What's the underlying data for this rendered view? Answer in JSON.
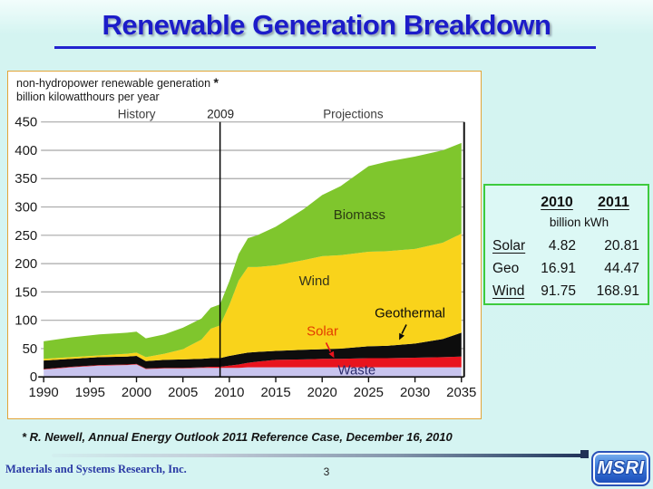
{
  "slide": {
    "title": "Renewable Generation Breakdown",
    "footnote": "* R. Newell, Annual Energy Outlook 2011 Reference Case, December 16, 2010",
    "organization": "Materials and Systems Research, Inc.",
    "page_number": "3",
    "logo_text": "MSRI"
  },
  "chart": {
    "header_line1": "non-hydropower renewable generation",
    "header_asterisk": "*",
    "header_line2": "billion kilowatthours per year",
    "period_labels": {
      "history": "History",
      "divider_year": "2009",
      "projections": "Projections"
    },
    "area_labels": {
      "biomass": "Biomass",
      "wind": "Wind",
      "geothermal": "Geothermal",
      "solar": "Solar",
      "waste": "Waste"
    }
  },
  "chart_data": {
    "type": "area",
    "stacked": true,
    "title": "non-hydropower renewable generation",
    "units": "billion kilowatthours per year",
    "xlim": [
      1990,
      2035
    ],
    "ylim": [
      0,
      450
    ],
    "y_ticks": [
      0,
      50,
      100,
      150,
      200,
      250,
      300,
      350,
      400,
      450
    ],
    "x_ticks": [
      1990,
      1995,
      2000,
      2005,
      2010,
      2015,
      2020,
      2025,
      2030,
      2035
    ],
    "divider_x": 2009,
    "grid": "horizontal",
    "legend": "in-plot area labels",
    "x": [
      1990,
      1993,
      1996,
      1999,
      2000,
      2001,
      2003,
      2005,
      2007,
      2008,
      2009,
      2010,
      2011,
      2012,
      2013,
      2015,
      2018,
      2020,
      2022,
      2025,
      2027,
      2030,
      2033,
      2035
    ],
    "series": [
      {
        "name": "Waste",
        "color": "#c8c4ee",
        "values": [
          13,
          17,
          20,
          21,
          22,
          14,
          15,
          15,
          16,
          16,
          16,
          16,
          16,
          17,
          17,
          17,
          17,
          17,
          17,
          17,
          17,
          17,
          17,
          17
        ]
      },
      {
        "name": "Solar",
        "color": "#e8141e",
        "values": [
          1,
          1,
          1,
          1,
          1,
          1,
          1,
          1,
          1,
          2,
          2,
          4,
          6,
          8,
          10,
          13,
          14,
          15,
          15,
          16,
          16,
          17,
          18,
          19
        ]
      },
      {
        "name": "Geothermal",
        "color": "#0d0d0d",
        "values": [
          15,
          14,
          14,
          14,
          14,
          13,
          14,
          15,
          15,
          15,
          15,
          17,
          18,
          18,
          17,
          16,
          17,
          17,
          18,
          21,
          22,
          25,
          32,
          42
        ]
      },
      {
        "name": "Wind",
        "color": "#f9d31b",
        "values": [
          3,
          3,
          3,
          5,
          6,
          7,
          11,
          18,
          34,
          52,
          58,
          90,
          130,
          151,
          150,
          151,
          158,
          164,
          165,
          167,
          167,
          167,
          170,
          175
        ]
      },
      {
        "name": "Biomass",
        "color": "#7fc62d",
        "values": [
          31,
          35,
          37,
          37,
          37,
          33,
          34,
          38,
          37,
          37,
          37,
          42,
          47,
          51,
          56,
          68,
          90,
          108,
          122,
          151,
          158,
          163,
          163,
          160
        ]
      }
    ]
  },
  "table": {
    "col_headers": [
      "2010",
      "2011"
    ],
    "unit_label": "billion kWh",
    "rows": [
      {
        "label": "Solar",
        "v2010": "4.82",
        "v2011": "20.81"
      },
      {
        "label": "Geo",
        "v2010": "16.91",
        "v2011": "44.47"
      },
      {
        "label": "Wind",
        "v2010": "91.75",
        "v2011": "168.91"
      }
    ]
  },
  "colors": {
    "slide_background": "#d5f4f2",
    "title_blue": "#1c1cc9",
    "chart_border": "#e2a438",
    "table_border": "#3ecb3e",
    "gridline": "#a8a8a8",
    "solar_label": "#e33c00",
    "logo_blue": "#1a4ab8"
  }
}
